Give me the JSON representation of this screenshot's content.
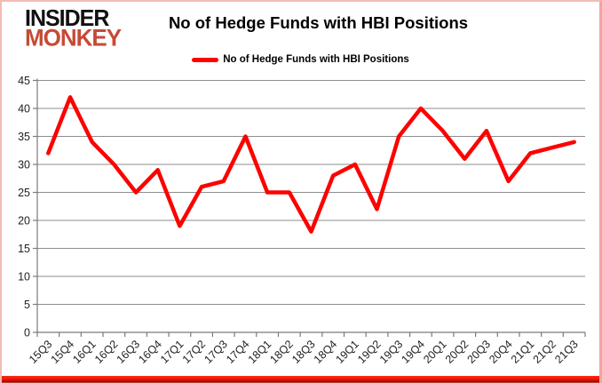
{
  "logo": {
    "line1": "INSIDER",
    "line2": "MONKEY",
    "line1_color": "#111111",
    "line2_color": "#c64a36"
  },
  "header": {
    "title": "No of Hedge Funds with HBI Positions"
  },
  "legend": {
    "label": "No of Hedge Funds with HBI Positions",
    "line_color": "#ff0000"
  },
  "chart_data": {
    "type": "line",
    "title": "No of Hedge Funds with HBI Positions",
    "categories": [
      "15Q3",
      "15Q4",
      "16Q1",
      "16Q2",
      "16Q3",
      "16Q4",
      "17Q1",
      "17Q2",
      "17Q3",
      "17Q4",
      "18Q1",
      "18Q2",
      "18Q3",
      "18Q4",
      "19Q1",
      "19Q2",
      "19Q3",
      "19Q4",
      "20Q1",
      "20Q2",
      "20Q3",
      "20Q4",
      "21Q1",
      "21Q2",
      "21Q3"
    ],
    "values": [
      32,
      42,
      34,
      30,
      25,
      29,
      19,
      26,
      27,
      35,
      25,
      25,
      18,
      28,
      30,
      22,
      35,
      40,
      36,
      31,
      36,
      27,
      32,
      33,
      34
    ],
    "series_name": "No of Hedge Funds with HBI Positions",
    "xlabel": "",
    "ylabel": "",
    "ylim": [
      0,
      45
    ],
    "ytick_step": 5,
    "grid": true,
    "legend_position": "top-center",
    "line_color": "#ff0000",
    "grid_color": "#8e8e8e",
    "axis_color": "#7a7a7a",
    "label_color": "#1f1f1f"
  }
}
